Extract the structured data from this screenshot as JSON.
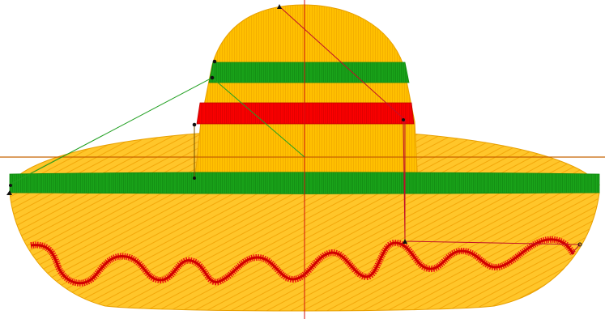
{
  "design": {
    "subject": "sombrero-embroidery",
    "colors": {
      "background": "#ffffff",
      "hat_fill": "#ffc000",
      "hat_fill_light": "#ffd24a",
      "hat_outline": "#e8a000",
      "band_green": "#1aa51a",
      "band_red": "#ff0000",
      "zigzag_red": "#ee1111",
      "guide_orange": "#c86400",
      "guide_red": "#d01010",
      "travel_red": "#c0102a",
      "travel_green": "#22a022",
      "node_black": "#111111"
    },
    "icons": {
      "node": "stitch-node-icon",
      "start": "start-triangle-icon"
    }
  }
}
